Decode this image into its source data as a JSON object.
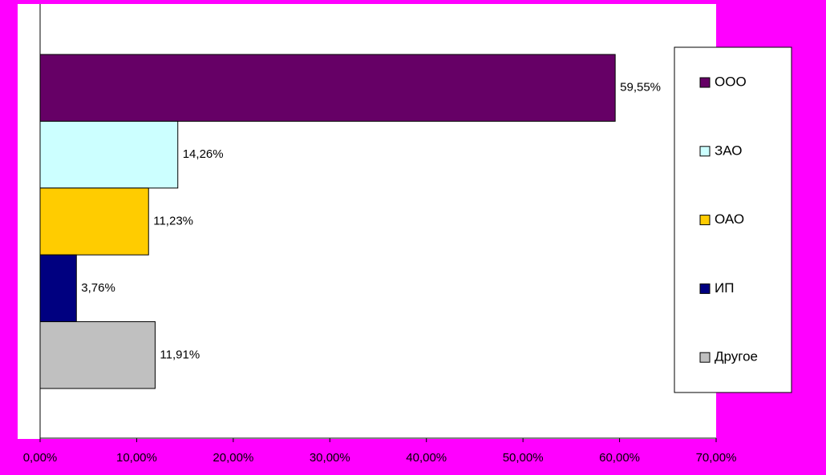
{
  "chart_data": {
    "type": "bar",
    "orientation": "horizontal",
    "series": [
      {
        "name": "ООО",
        "color": "#660066",
        "values": [
          59.55
        ],
        "value_labels": [
          "59,55%"
        ]
      },
      {
        "name": "ЗАО",
        "color": "#ccffff",
        "values": [
          14.26
        ],
        "value_labels": [
          "14,26%"
        ]
      },
      {
        "name": "ОАО",
        "color": "#ffcc00",
        "values": [
          11.23
        ],
        "value_labels": [
          "11,23%"
        ]
      },
      {
        "name": "ИП",
        "color": "#000080",
        "values": [
          3.76
        ],
        "value_labels": [
          "3,76%"
        ]
      },
      {
        "name": "Другое",
        "color": "#c0c0c0",
        "values": [
          11.91
        ],
        "value_labels": [
          "11,91%"
        ]
      }
    ],
    "xlim": [
      0,
      70
    ],
    "xticks": [
      {
        "value": 0,
        "label": "0,00%"
      },
      {
        "value": 10,
        "label": "10,00%"
      },
      {
        "value": 20,
        "label": "20,00%"
      },
      {
        "value": 30,
        "label": "30,00%"
      },
      {
        "value": 40,
        "label": "40,00%"
      },
      {
        "value": 50,
        "label": "50,00%"
      },
      {
        "value": 60,
        "label": "60,00%"
      },
      {
        "value": 70,
        "label": "70,00%"
      }
    ],
    "legend": "right"
  }
}
